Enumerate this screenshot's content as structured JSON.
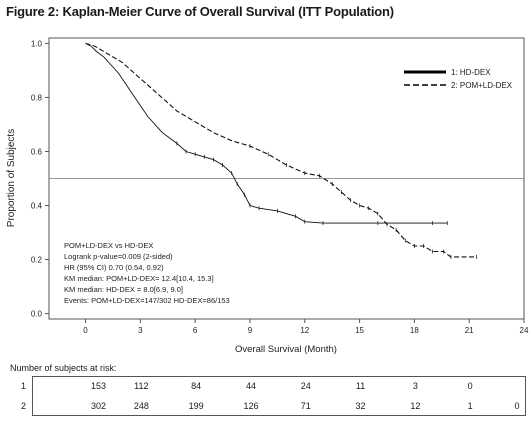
{
  "figure_title": "Figure 2: Kaplan-Meier Curve of Overall Survival (ITT Population)",
  "chart_data": {
    "type": "line",
    "xlabel": "Overall Survival (Month)",
    "ylabel": "Proportion of Subjects",
    "xlim": [
      -2,
      24
    ],
    "ylim": [
      -0.02,
      1.02
    ],
    "x_ticks": [
      0,
      3,
      6,
      9,
      12,
      15,
      18,
      21,
      24
    ],
    "y_ticks": [
      0.0,
      0.2,
      0.4,
      0.6,
      0.8,
      1.0
    ],
    "y_tick_labels": [
      "0.0",
      "0.2",
      "0.4",
      "0.6",
      "0.8",
      "1.0"
    ],
    "reference_line_y": 0.5,
    "legend_position": "top-right",
    "series": [
      {
        "name": "1: HD-DEX",
        "style": "solid",
        "points": [
          [
            0,
            1.0
          ],
          [
            0.3,
            0.99
          ],
          [
            0.6,
            0.97
          ],
          [
            1.0,
            0.95
          ],
          [
            1.4,
            0.92
          ],
          [
            1.8,
            0.89
          ],
          [
            2.2,
            0.85
          ],
          [
            2.6,
            0.81
          ],
          [
            3.0,
            0.77
          ],
          [
            3.4,
            0.73
          ],
          [
            3.8,
            0.7
          ],
          [
            4.2,
            0.67
          ],
          [
            4.6,
            0.65
          ],
          [
            5.0,
            0.63
          ],
          [
            5.5,
            0.6
          ],
          [
            6.0,
            0.59
          ],
          [
            6.5,
            0.58
          ],
          [
            7.0,
            0.57
          ],
          [
            7.5,
            0.55
          ],
          [
            8.0,
            0.52
          ],
          [
            8.3,
            0.48
          ],
          [
            8.7,
            0.44
          ],
          [
            9.0,
            0.4
          ],
          [
            9.5,
            0.39
          ],
          [
            10.5,
            0.38
          ],
          [
            11.5,
            0.36
          ],
          [
            12.0,
            0.34
          ],
          [
            13.0,
            0.335
          ],
          [
            16.0,
            0.335
          ],
          [
            19.0,
            0.335
          ],
          [
            19.8,
            0.335
          ]
        ]
      },
      {
        "name": "2: POM+LD-DEX",
        "style": "dashed",
        "points": [
          [
            0,
            1.0
          ],
          [
            0.5,
            0.99
          ],
          [
            1.0,
            0.97
          ],
          [
            1.5,
            0.95
          ],
          [
            2.0,
            0.93
          ],
          [
            2.5,
            0.9
          ],
          [
            3.0,
            0.87
          ],
          [
            3.5,
            0.84
          ],
          [
            4.0,
            0.81
          ],
          [
            4.5,
            0.78
          ],
          [
            5.0,
            0.75
          ],
          [
            5.5,
            0.73
          ],
          [
            6.0,
            0.71
          ],
          [
            6.5,
            0.69
          ],
          [
            7.0,
            0.67
          ],
          [
            8.0,
            0.64
          ],
          [
            9.0,
            0.62
          ],
          [
            10.0,
            0.59
          ],
          [
            11.0,
            0.55
          ],
          [
            12.0,
            0.52
          ],
          [
            12.8,
            0.51
          ],
          [
            13.5,
            0.48
          ],
          [
            14.0,
            0.45
          ],
          [
            14.5,
            0.42
          ],
          [
            15.0,
            0.4
          ],
          [
            15.5,
            0.39
          ],
          [
            16.0,
            0.37
          ],
          [
            16.5,
            0.33
          ],
          [
            17.0,
            0.31
          ],
          [
            17.5,
            0.27
          ],
          [
            18.0,
            0.25
          ],
          [
            18.5,
            0.25
          ],
          [
            19.0,
            0.23
          ],
          [
            19.6,
            0.23
          ],
          [
            20.0,
            0.21
          ],
          [
            21.4,
            0.21
          ]
        ]
      }
    ],
    "annotations": [
      "POM+LD-DEX vs HD-DEX",
      "Logrank p-value=0.009 (2-sided)",
      "HR (95% CI) 0.70 (0.54, 0.92)",
      "KM median: POM+LD-DEX= 12.4[10.4, 15.3]",
      "KM median: HD-DEX = 8.0[6.9, 9.0]",
      "Events: POM+LD-DEX=147/302 HD-DEX=86/153"
    ]
  },
  "risk_table": {
    "header": "Number of subjects at risk:",
    "x": [
      0,
      3,
      6,
      9,
      12,
      15,
      18,
      21,
      24
    ],
    "rows": [
      {
        "label": "1",
        "values": [
          "153",
          "112",
          "84",
          "44",
          "24",
          "11",
          "3",
          "0"
        ]
      },
      {
        "label": "2",
        "values": [
          "302",
          "248",
          "199",
          "126",
          "71",
          "32",
          "12",
          "1",
          "0"
        ]
      }
    ]
  }
}
